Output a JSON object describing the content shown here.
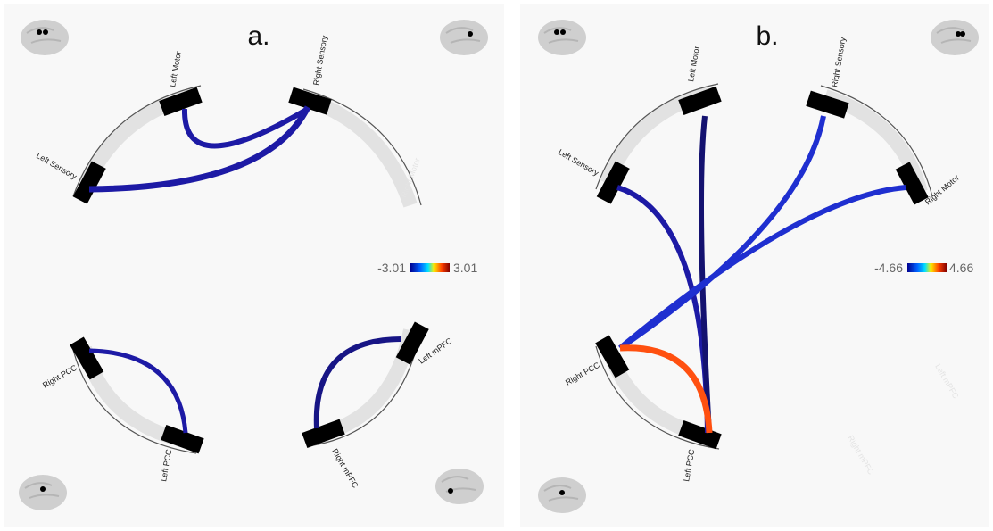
{
  "panels": [
    {
      "letter": "a.",
      "colorbar": {
        "min": "-3.01",
        "max": "3.01"
      },
      "labels": [
        "Left Motor",
        "Right Sensory",
        "Left Sensory",
        "Right Motor",
        "Right PCC",
        "Left PCC",
        "Left mPFC",
        "Right mPFC"
      ]
    },
    {
      "letter": "b.",
      "colorbar": {
        "min": "-4.66",
        "max": "4.66"
      },
      "labels": [
        "Left Motor",
        "Right Sensory",
        "Left Sensory",
        "Right Motor",
        "Right PCC",
        "Left PCC",
        "Left mPFC",
        "Right mPFC"
      ]
    }
  ]
}
